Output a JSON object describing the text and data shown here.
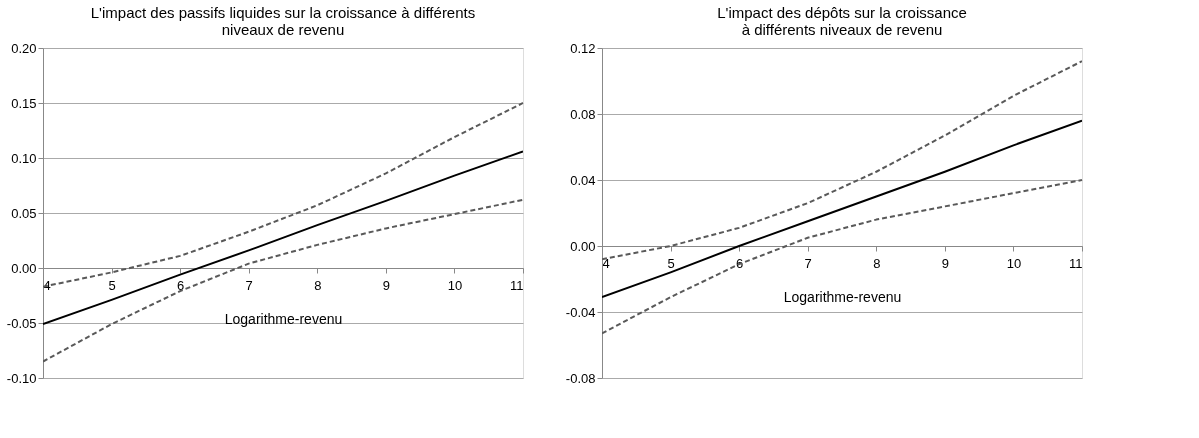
{
  "chart_data": [
    {
      "type": "line",
      "title": [
        "L'impact des passifs liquides sur la croissance à différents",
        "niveaux de revenu"
      ],
      "xlabel": "Logarithme-revenu",
      "x": [
        4,
        5,
        6,
        7,
        8,
        9,
        10,
        11
      ],
      "xlim": [
        4,
        11
      ],
      "xticks": [
        4,
        5,
        6,
        7,
        8,
        9,
        10,
        11
      ],
      "ylim": [
        -0.1,
        0.2
      ],
      "yticks": [
        {
          "value": -0.1,
          "label": "-0.10"
        },
        {
          "value": -0.05,
          "label": "-0.05"
        },
        {
          "value": 0,
          "label": "0.00"
        },
        {
          "value": 0.05,
          "label": "0.05"
        },
        {
          "value": 0.1,
          "label": "0.10"
        },
        {
          "value": 0.15,
          "label": "0.15"
        },
        {
          "value": 0.2,
          "label": "0.20"
        }
      ],
      "grid": "y",
      "legend": false,
      "series": [
        {
          "color": "#000000",
          "line_style": "solid",
          "values": [
            -0.051,
            -0.029,
            -0.006,
            0.016,
            0.039,
            0.061,
            0.084,
            0.106
          ]
        },
        {
          "color": "#595959",
          "line_style": "dashed",
          "values": [
            -0.017,
            -0.004,
            0.011,
            0.033,
            0.057,
            0.086,
            0.119,
            0.15
          ]
        },
        {
          "color": "#595959",
          "line_style": "dashed",
          "values": [
            -0.085,
            -0.051,
            -0.021,
            0.004,
            0.021,
            0.036,
            0.049,
            0.062
          ]
        }
      ]
    },
    {
      "type": "line",
      "title": [
        "L'impact des dépôts sur la croissance",
        "à différents niveaux de revenu"
      ],
      "xlabel": "Logarithme-revenu",
      "x": [
        4,
        5,
        6,
        7,
        8,
        9,
        10,
        11
      ],
      "xlim": [
        4,
        11
      ],
      "xticks": [
        4,
        5,
        6,
        7,
        8,
        9,
        10,
        11
      ],
      "ylim": [
        -0.08,
        0.12
      ],
      "yticks": [
        {
          "value": -0.08,
          "label": "-0.08"
        },
        {
          "value": -0.04,
          "label": "-0.04"
        },
        {
          "value": 0,
          "label": "0.00"
        },
        {
          "value": 0.04,
          "label": "0.04"
        },
        {
          "value": 0.08,
          "label": "0.08"
        },
        {
          "value": 0.12,
          "label": "0.12"
        }
      ],
      "grid": "y",
      "legend": false,
      "series": [
        {
          "color": "#000000",
          "line_style": "solid",
          "values": [
            -0.031,
            -0.016,
            0.0,
            0.015,
            0.03,
            0.045,
            0.061,
            0.076
          ]
        },
        {
          "color": "#595959",
          "line_style": "dashed",
          "values": [
            -0.008,
            0.0,
            0.011,
            0.026,
            0.045,
            0.067,
            0.091,
            0.112
          ]
        },
        {
          "color": "#595959",
          "line_style": "dashed",
          "values": [
            -0.053,
            -0.031,
            -0.011,
            0.005,
            0.016,
            0.024,
            0.032,
            0.04
          ]
        }
      ]
    }
  ]
}
